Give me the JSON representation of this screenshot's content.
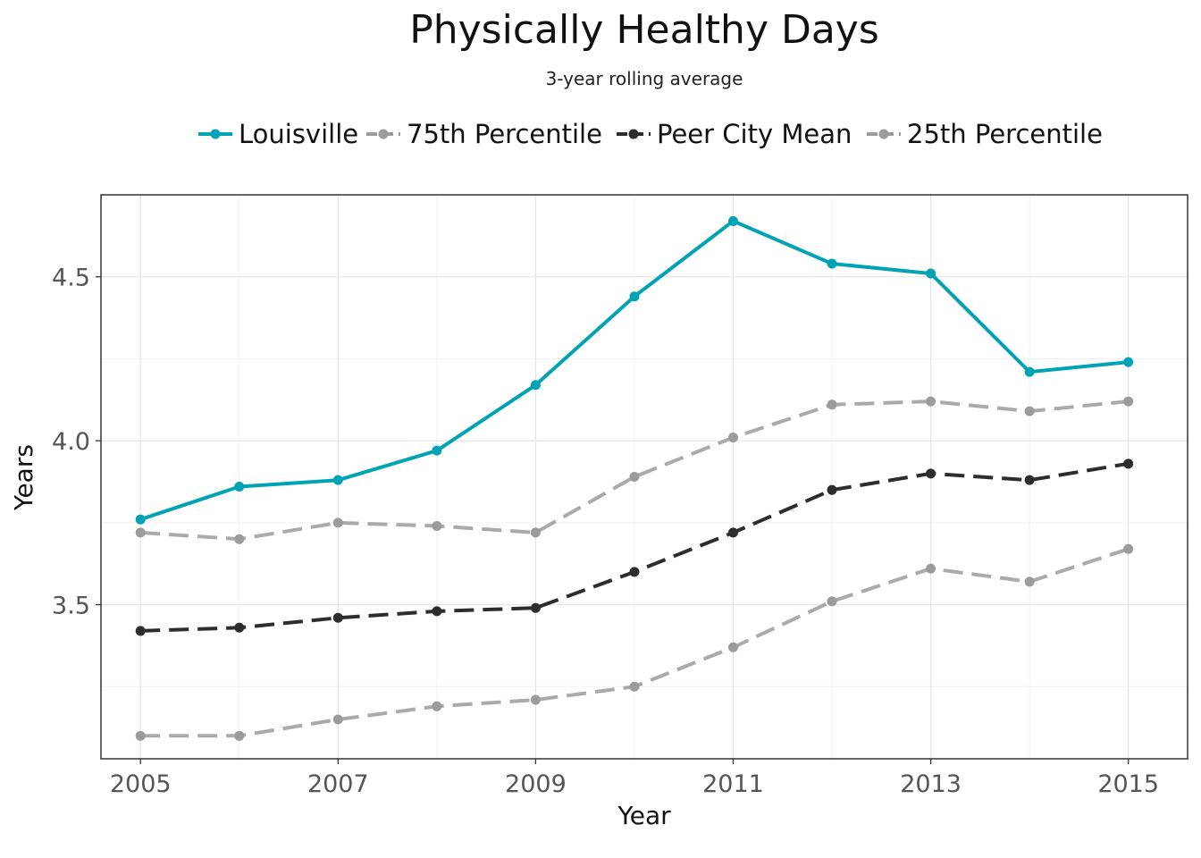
{
  "chart_data": {
    "type": "line",
    "title": "Physically Healthy Days",
    "subtitle": "3-year rolling average",
    "xlabel": "Year",
    "ylabel": "Years",
    "x": [
      2005,
      2006,
      2007,
      2008,
      2009,
      2010,
      2011,
      2012,
      2013,
      2014,
      2015
    ],
    "xlim": [
      2004.6,
      2015.6
    ],
    "ylim": [
      3.03,
      4.75
    ],
    "x_ticks": [
      2005,
      2007,
      2009,
      2011,
      2013,
      2015
    ],
    "x_tick_labels": [
      "2005",
      "2007",
      "2009",
      "2011",
      "2013",
      "2015"
    ],
    "y_ticks": [
      3.5,
      4.0,
      4.5
    ],
    "y_tick_labels": [
      "3.5",
      "4.0",
      "4.5"
    ],
    "grid": true,
    "legend_position": "top",
    "series": [
      {
        "name": "Louisville",
        "color": "#00a3b4",
        "dashed": false,
        "values": [
          3.76,
          3.86,
          3.88,
          3.97,
          4.17,
          4.44,
          4.67,
          4.54,
          4.51,
          4.21,
          4.24
        ]
      },
      {
        "name": "75th Percentile",
        "color": "#9b9b9b",
        "dashed": true,
        "values": [
          3.72,
          3.7,
          3.75,
          3.74,
          3.72,
          3.89,
          4.01,
          4.11,
          4.12,
          4.09,
          4.12
        ]
      },
      {
        "name": "Peer City Mean",
        "color": "#2d2d2d",
        "dashed": true,
        "values": [
          3.42,
          3.43,
          3.46,
          3.48,
          3.49,
          3.6,
          3.72,
          3.85,
          3.9,
          3.88,
          3.93
        ]
      },
      {
        "name": "25th Percentile",
        "color": "#9b9b9b",
        "dashed": true,
        "values": [
          3.1,
          3.1,
          3.15,
          3.19,
          3.21,
          3.25,
          3.37,
          3.51,
          3.61,
          3.57,
          3.67
        ]
      }
    ]
  }
}
